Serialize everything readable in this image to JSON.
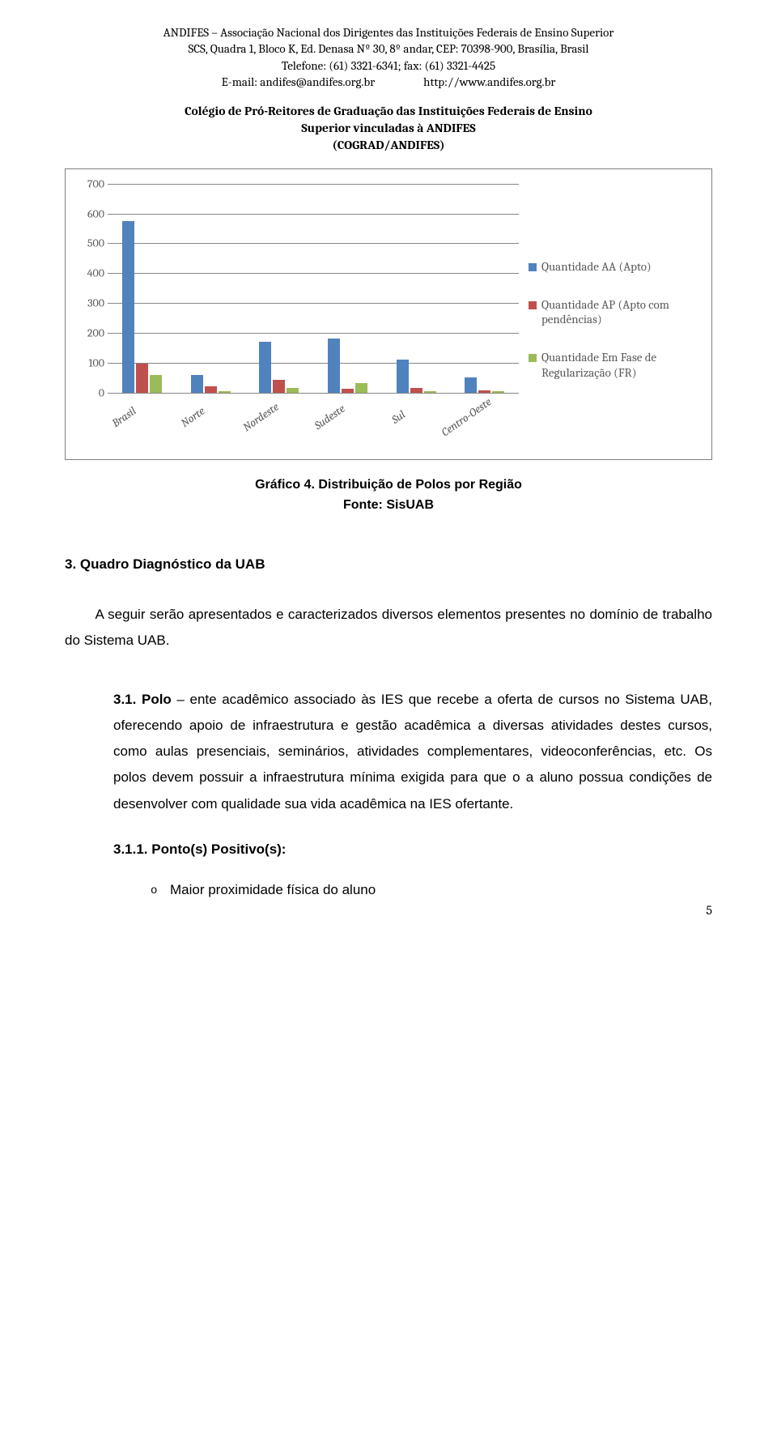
{
  "header": {
    "line1": "ANDIFES – Associação Nacional dos Dirigentes das Instituições Federais de Ensino Superior",
    "line2": "SCS, Quadra 1, Bloco K, Ed. Denasa Nº 30, 8º andar, CEP: 70398-900, Brasília, Brasil",
    "line3": "Telefone: (61) 3321-6341; fax: (61) 3321-4425",
    "email": "E-mail: andifes@andifes.org.br",
    "url": "http://www.andifes.org.br"
  },
  "subheader": {
    "line1": "Colégio de Pró-Reitores de Graduação das Instituições Federais de Ensino",
    "line2": "Superior vinculadas à ANDIFES",
    "line3": "(COGRAD/ANDIFES)"
  },
  "chart": {
    "type": "bar",
    "ylim": [
      0,
      700
    ],
    "ytick_step": 100,
    "yticks": [
      0,
      100,
      200,
      300,
      400,
      500,
      600,
      700
    ],
    "categories": [
      "Brasil",
      "Norte",
      "Nordeste",
      "Sudeste",
      "Sul",
      "Centro-Oeste"
    ],
    "series": [
      {
        "name": "Quantidade AA (Apto)",
        "color": "#5082be",
        "values": [
          575,
          58,
          170,
          182,
          110,
          52
        ]
      },
      {
        "name": "Quantidade AP (Apto com pendências)",
        "color": "#c0504d",
        "values": [
          98,
          20,
          42,
          14,
          15,
          8
        ]
      },
      {
        "name": "Quantidade Em Fase de Regularização (FR)",
        "color": "#9bbb59",
        "values": [
          60,
          4,
          15,
          32,
          6,
          4
        ]
      }
    ],
    "grid_color": "#868686",
    "axis_text_color": "#595959",
    "background_color": "#ffffff",
    "label_fontsize": 14,
    "legend_fontsize": 15
  },
  "caption": {
    "line1": "Gráfico 4. Distribuição de Polos por Região",
    "line2": "Fonte: SisUAB"
  },
  "section_title": "3. Quadro Diagnóstico da UAB",
  "intro_para": "A seguir serão apresentados e caracterizados diversos elementos presentes no domínio de trabalho do Sistema UAB.",
  "item_3_1": {
    "label": "3.1. Polo",
    "text": " – ente acadêmico associado às IES que recebe a oferta de cursos no Sistema UAB, oferecendo apoio de infraestrutura e gestão acadêmica a diversas atividades destes cursos, como aulas presenciais, seminários, atividades complementares, videoconferências, etc. Os polos devem possuir a infraestrutura mínima exigida para que o a aluno possua condições de desenvolver com qualidade sua vida acadêmica na IES ofertante."
  },
  "item_3_1_1": "3.1.1.  Ponto(s) Positivo(s):",
  "bullet1": "Maior proximidade física do aluno",
  "page_number": "5"
}
